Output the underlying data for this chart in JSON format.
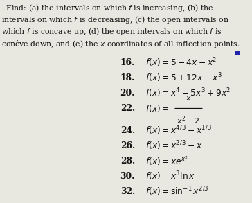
{
  "header_lines": [
    ". Find: (a) the intervals on which $f$ is increasing, (b) the",
    "intervals on which $f$ is decreasing, (c) the open intervals on",
    "which $f$ is concave up, (d) the open intervals on which $f$ is",
    "conċve down, and (e) the $x$-coordinates of all inflection points."
  ],
  "exercises": [
    {
      "num": "16.",
      "expr": "$f(x) = 5 - 4x - x^2$",
      "is_fraction": false
    },
    {
      "num": "18.",
      "expr": "$f(x) = 5 + 12x - x^3$",
      "is_fraction": false
    },
    {
      "num": "20.",
      "expr": "$f(x) = x^4 - 5x^3 + 9x^2$",
      "is_fraction": false
    },
    {
      "num": "22.",
      "expr_prefix": "$f(x) = $",
      "expr_top": "$x$",
      "expr_bot": "$x^2 + 2$",
      "is_fraction": true
    },
    {
      "num": "24.",
      "expr": "$f(x) = x^{4/3} - x^{1/3}$",
      "is_fraction": false
    },
    {
      "num": "26.",
      "expr": "$f(x) = x^{2/3} - x$",
      "is_fraction": false
    },
    {
      "num": "28.",
      "expr": "$f(x) = xe^{x^2}$",
      "is_fraction": false
    },
    {
      "num": "30.",
      "expr": "$f(x) = x^3 \\ln x$",
      "is_fraction": false
    },
    {
      "num": "32.",
      "expr": "$f(x) = \\sin^{-1} x^{2/3}$",
      "is_fraction": false
    }
  ],
  "bg_color": "#e8e8e0",
  "text_color": "#111111",
  "square_color": "#2222aa",
  "header_fontsize": 7.8,
  "exercise_fontsize": 8.8,
  "num_fontsize": 8.8
}
